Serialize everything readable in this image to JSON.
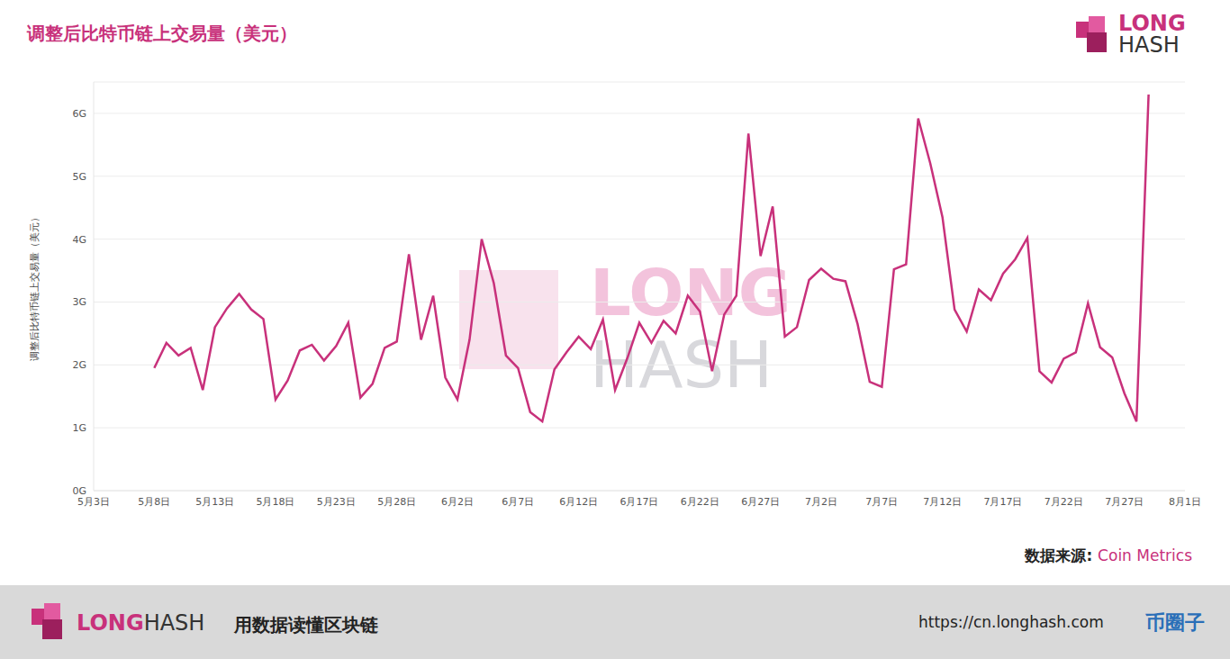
{
  "chart_data": {
    "type": "line",
    "title": "调整后比特币链上交易量（美元）",
    "y_label": "调整后比特币链上交易量（美元）",
    "source_label": "数据来源:",
    "source": "Coin Metrics",
    "categories": [
      "5月3日",
      null,
      null,
      null,
      null,
      "5月8日",
      null,
      null,
      null,
      null,
      "5月13日",
      null,
      null,
      null,
      null,
      "5月18日",
      null,
      null,
      null,
      null,
      "5月23日",
      null,
      null,
      null,
      null,
      "5月28日",
      null,
      null,
      null,
      null,
      "6月2日",
      null,
      null,
      null,
      null,
      "6月7日",
      null,
      null,
      null,
      null,
      "6月12日",
      null,
      null,
      null,
      null,
      "6月17日",
      null,
      null,
      null,
      null,
      "6月22日",
      null,
      null,
      null,
      null,
      "6月27日",
      null,
      null,
      null,
      null,
      "7月2日",
      null,
      null,
      null,
      null,
      "7月7日",
      null,
      null,
      null,
      null,
      "7月12日",
      null,
      null,
      null,
      null,
      "7月17日",
      null,
      null,
      null,
      null,
      "7月22日",
      null,
      null,
      null,
      null,
      "7月27日",
      null,
      null,
      null,
      null,
      "8月1日"
    ],
    "values": [
      null,
      null,
      null,
      null,
      null,
      1.95,
      2.35,
      2.15,
      2.27,
      1.6,
      2.6,
      2.9,
      3.13,
      2.88,
      2.73,
      1.45,
      1.75,
      2.23,
      2.32,
      2.07,
      2.3,
      2.67,
      1.48,
      1.7,
      2.27,
      2.37,
      3.76,
      2.4,
      3.1,
      1.8,
      1.45,
      2.4,
      4.0,
      3.3,
      2.15,
      1.95,
      1.25,
      1.1,
      1.93,
      2.2,
      2.45,
      2.25,
      2.72,
      1.6,
      2.1,
      2.67,
      2.35,
      2.7,
      2.5,
      3.1,
      2.85,
      1.9,
      2.8,
      3.1,
      5.68,
      3.73,
      4.52,
      2.45,
      2.6,
      3.35,
      3.53,
      3.37,
      3.33,
      2.65,
      1.73,
      1.65,
      3.52,
      3.6,
      5.92,
      5.2,
      4.35,
      2.88,
      2.53,
      3.2,
      3.03,
      3.45,
      3.68,
      4.02,
      1.9,
      1.72,
      2.1,
      2.2,
      2.98,
      2.28,
      2.12,
      1.55,
      1.1,
      6.3,
      null,
      null,
      null
    ],
    "color": "#c8317b",
    "ylim": [
      0,
      6.5
    ],
    "yticks": [
      {
        "value": 0,
        "label": "0G"
      },
      {
        "value": 1,
        "label": "1G"
      },
      {
        "value": 2,
        "label": "2G"
      },
      {
        "value": 3,
        "label": "3G"
      },
      {
        "value": 4,
        "label": "4G"
      },
      {
        "value": 5,
        "label": "5G"
      },
      {
        "value": 6,
        "label": "6G"
      }
    ],
    "grid": true
  },
  "branding": {
    "logo": [
      "LONG",
      "HASH"
    ],
    "watermark": [
      "LONG",
      "HASH"
    ],
    "slogan": "用数据读懂区块链",
    "url": "https://cn.longhash.com",
    "stamp": "币圈子"
  }
}
